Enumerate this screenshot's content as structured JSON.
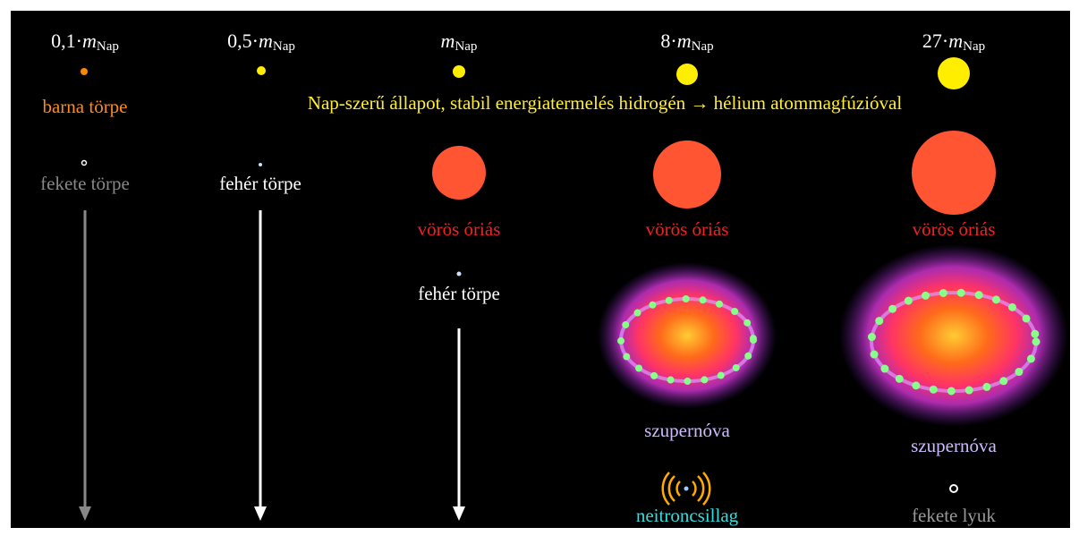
{
  "columns": [
    {
      "header": {
        "coefficient": "0,1·",
        "symbol": "m",
        "subscript": "Nap"
      },
      "stages": [
        "barna törpe",
        "fekete törpe"
      ]
    },
    {
      "header": {
        "coefficient": "0,5·",
        "symbol": "m",
        "subscript": "Nap"
      },
      "stages": [
        "fehér törpe"
      ]
    },
    {
      "header": {
        "symbol": "m",
        "subscript": "Nap"
      },
      "stages": [
        "vörös óriás",
        "fehér törpe"
      ]
    },
    {
      "header": {
        "coefficient": "8·",
        "symbol": "m",
        "subscript": "Nap"
      },
      "stages": [
        "vörös óriás",
        "szupernóva",
        "neitroncsillag"
      ]
    },
    {
      "header": {
        "coefficient": "27·",
        "symbol": "m",
        "subscript": "Nap"
      },
      "stages": [
        "vörös óriás",
        "szupernóva",
        "fekete lyuk"
      ]
    }
  ],
  "main_sequence_note": "Nap-szerű állapot, stabil energiatermelés hidrogén → hélium atommagfúzióval"
}
